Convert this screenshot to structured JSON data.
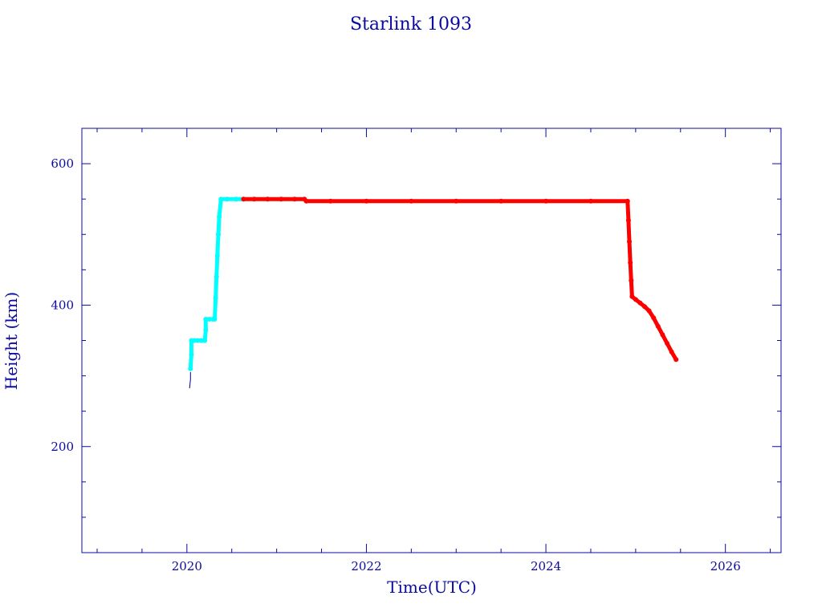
{
  "chart_data": {
    "type": "scatter",
    "title": "Starlink 1093",
    "xlabel": "Time(UTC)",
    "ylabel": "Height (km)",
    "xlim": [
      2018.83,
      2026.62
    ],
    "ylim": [
      50,
      650
    ],
    "x_ticks": [
      "2020",
      "2022",
      "2024",
      "2026"
    ],
    "y_ticks": [
      "200",
      "400",
      "600"
    ],
    "grid": false,
    "colors": {
      "axis": "#0a0aa0",
      "raising": "#00ffff",
      "operational": "#ff0000",
      "initial": "#000080"
    },
    "series": [
      {
        "color_key": "initial",
        "points": [
          [
            2020.03,
            283
          ],
          [
            2020.04,
            295
          ],
          [
            2020.04,
            305
          ]
        ]
      },
      {
        "color_key": "raising",
        "points": [
          [
            2020.04,
            310
          ],
          [
            2020.05,
            330
          ],
          [
            2020.05,
            350
          ],
          [
            2020.08,
            350
          ],
          [
            2020.12,
            350
          ],
          [
            2020.16,
            350
          ],
          [
            2020.2,
            350
          ],
          [
            2020.21,
            365
          ],
          [
            2020.21,
            380
          ],
          [
            2020.25,
            380
          ],
          [
            2020.29,
            380
          ],
          [
            2020.31,
            380
          ],
          [
            2020.32,
            410
          ],
          [
            2020.33,
            440
          ],
          [
            2020.34,
            470
          ],
          [
            2020.35,
            500
          ],
          [
            2020.36,
            525
          ],
          [
            2020.38,
            550
          ],
          [
            2020.45,
            550
          ],
          [
            2020.55,
            550
          ],
          [
            2020.63,
            550
          ]
        ]
      },
      {
        "color_key": "operational",
        "points": [
          [
            2020.63,
            550
          ],
          [
            2020.75,
            550
          ],
          [
            2020.9,
            550
          ],
          [
            2021.05,
            550
          ],
          [
            2021.2,
            550
          ],
          [
            2021.31,
            550
          ],
          [
            2021.33,
            547
          ],
          [
            2021.6,
            547
          ],
          [
            2022.0,
            547
          ],
          [
            2022.5,
            547
          ],
          [
            2023.0,
            547
          ],
          [
            2023.5,
            547
          ],
          [
            2024.0,
            547
          ],
          [
            2024.5,
            547
          ],
          [
            2024.91,
            547
          ],
          [
            2024.92,
            520
          ],
          [
            2024.93,
            490
          ],
          [
            2024.94,
            460
          ],
          [
            2024.95,
            435
          ],
          [
            2024.96,
            412
          ],
          [
            2025.0,
            408
          ],
          [
            2025.05,
            403
          ],
          [
            2025.1,
            398
          ],
          [
            2025.15,
            392
          ],
          [
            2025.2,
            382
          ],
          [
            2025.25,
            370
          ],
          [
            2025.3,
            358
          ],
          [
            2025.35,
            346
          ],
          [
            2025.4,
            334
          ],
          [
            2025.45,
            323
          ]
        ]
      }
    ]
  }
}
